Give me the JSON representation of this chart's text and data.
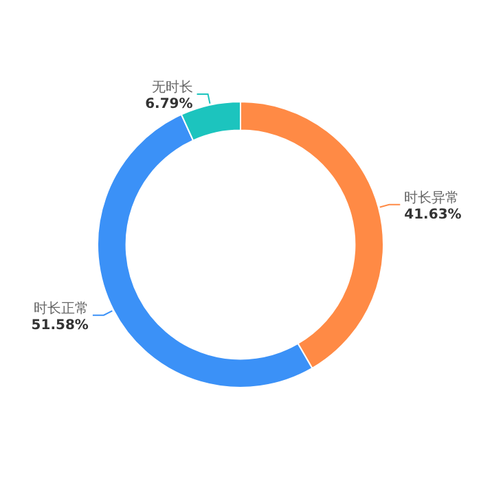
{
  "chart_data": {
    "type": "donut",
    "categories": [
      "时长异常",
      "时长正常",
      "无时长"
    ],
    "values": [
      41.63,
      51.58,
      6.79
    ],
    "colors": [
      "#ff8a45",
      "#3b91f7",
      "#1cc4be"
    ],
    "value_labels": [
      "41.63%",
      "51.58%",
      "6.79%"
    ]
  }
}
